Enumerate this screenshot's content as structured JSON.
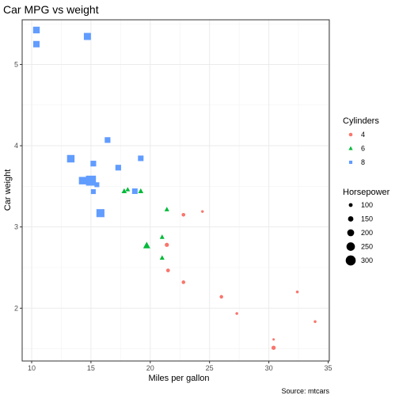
{
  "chart_data": {
    "type": "scatter",
    "title": "Car MPG vs weight",
    "xlabel": "Miles per gallon",
    "ylabel": "Car weight",
    "caption": "Source: mtcars",
    "xlim": [
      9.2,
      35.1
    ],
    "ylim": [
      1.35,
      5.55
    ],
    "x_ticks": [
      10,
      15,
      20,
      25,
      30,
      35
    ],
    "y_ticks": [
      2,
      3,
      4,
      5
    ],
    "grid": true,
    "legend_position": "right",
    "colors": {
      "4": "#f8766d",
      "6": "#00ba38",
      "8": "#619cff"
    },
    "color_legend": {
      "title": "Cylinders",
      "entries": [
        {
          "label": "4",
          "shape": "circle"
        },
        {
          "label": "6",
          "shape": "triangle"
        },
        {
          "label": "8",
          "shape": "square"
        }
      ]
    },
    "size_legend": {
      "title": "Horsepower",
      "entries": [
        {
          "label": "100",
          "hp": 100
        },
        {
          "label": "150",
          "hp": 150
        },
        {
          "label": "200",
          "hp": 200
        },
        {
          "label": "250",
          "hp": 250
        },
        {
          "label": "300",
          "hp": 300
        }
      ]
    },
    "hp_range": [
      52,
      335
    ],
    "points": [
      {
        "mpg": 21.0,
        "wt": 2.62,
        "cyl": "6",
        "hp": 110
      },
      {
        "mpg": 21.0,
        "wt": 2.875,
        "cyl": "6",
        "hp": 110
      },
      {
        "mpg": 22.8,
        "wt": 2.32,
        "cyl": "4",
        "hp": 93
      },
      {
        "mpg": 21.4,
        "wt": 3.215,
        "cyl": "6",
        "hp": 110
      },
      {
        "mpg": 18.7,
        "wt": 3.44,
        "cyl": "8",
        "hp": 175
      },
      {
        "mpg": 18.1,
        "wt": 3.46,
        "cyl": "6",
        "hp": 105
      },
      {
        "mpg": 14.3,
        "wt": 3.57,
        "cyl": "8",
        "hp": 245
      },
      {
        "mpg": 24.4,
        "wt": 3.19,
        "cyl": "4",
        "hp": 62
      },
      {
        "mpg": 22.8,
        "wt": 3.15,
        "cyl": "4",
        "hp": 95
      },
      {
        "mpg": 19.2,
        "wt": 3.44,
        "cyl": "6",
        "hp": 123
      },
      {
        "mpg": 17.8,
        "wt": 3.44,
        "cyl": "6",
        "hp": 123
      },
      {
        "mpg": 16.4,
        "wt": 4.07,
        "cyl": "8",
        "hp": 180
      },
      {
        "mpg": 17.3,
        "wt": 3.73,
        "cyl": "8",
        "hp": 180
      },
      {
        "mpg": 15.2,
        "wt": 3.78,
        "cyl": "8",
        "hp": 180
      },
      {
        "mpg": 10.4,
        "wt": 5.25,
        "cyl": "8",
        "hp": 205
      },
      {
        "mpg": 10.4,
        "wt": 5.424,
        "cyl": "8",
        "hp": 215
      },
      {
        "mpg": 14.7,
        "wt": 5.345,
        "cyl": "8",
        "hp": 230
      },
      {
        "mpg": 32.4,
        "wt": 2.2,
        "cyl": "4",
        "hp": 66
      },
      {
        "mpg": 30.4,
        "wt": 1.615,
        "cyl": "4",
        "hp": 52
      },
      {
        "mpg": 33.9,
        "wt": 1.835,
        "cyl": "4",
        "hp": 65
      },
      {
        "mpg": 21.5,
        "wt": 2.465,
        "cyl": "4",
        "hp": 97
      },
      {
        "mpg": 15.5,
        "wt": 3.52,
        "cyl": "8",
        "hp": 150
      },
      {
        "mpg": 15.2,
        "wt": 3.435,
        "cyl": "8",
        "hp": 150
      },
      {
        "mpg": 13.3,
        "wt": 3.84,
        "cyl": "8",
        "hp": 245
      },
      {
        "mpg": 19.2,
        "wt": 3.845,
        "cyl": "8",
        "hp": 175
      },
      {
        "mpg": 27.3,
        "wt": 1.935,
        "cyl": "4",
        "hp": 66
      },
      {
        "mpg": 26.0,
        "wt": 2.14,
        "cyl": "4",
        "hp": 91
      },
      {
        "mpg": 30.4,
        "wt": 1.513,
        "cyl": "4",
        "hp": 113
      },
      {
        "mpg": 15.8,
        "wt": 3.17,
        "cyl": "8",
        "hp": 264
      },
      {
        "mpg": 19.7,
        "wt": 2.77,
        "cyl": "6",
        "hp": 175
      },
      {
        "mpg": 15.0,
        "wt": 3.57,
        "cyl": "8",
        "hp": 335
      },
      {
        "mpg": 21.4,
        "wt": 2.78,
        "cyl": "4",
        "hp": 109
      }
    ]
  }
}
